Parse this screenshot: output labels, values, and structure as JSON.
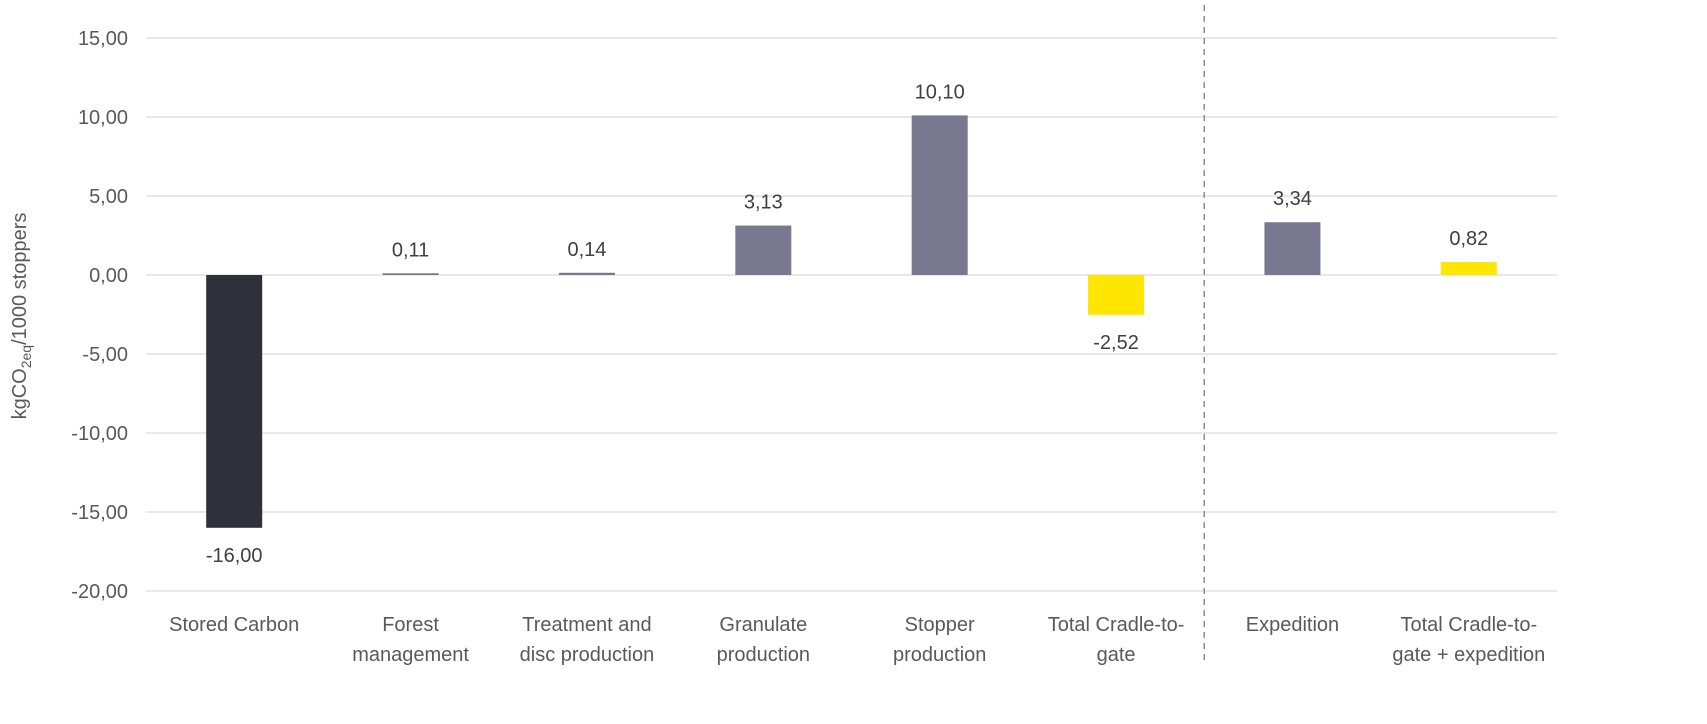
{
  "chart_data": {
    "type": "bar",
    "title": "",
    "xlabel": "",
    "ylabel": {
      "prefix": "kgCO",
      "subscript": "2eq",
      "suffix": "/1000 stoppers"
    },
    "ylim": [
      -20,
      15
    ],
    "yticks": [
      15,
      10,
      5,
      0,
      -5,
      -10,
      -15,
      -20
    ],
    "ytick_labels": [
      "15,00",
      "10,00",
      "5,00",
      "0,00",
      "-5,00",
      "-10,00",
      "-15,00",
      "-20,00"
    ],
    "grid": true,
    "legend": "none",
    "divider_after_category_index": 5,
    "categories": [
      {
        "lines": [
          "Stored Carbon"
        ]
      },
      {
        "lines": [
          "Forest",
          "management"
        ]
      },
      {
        "lines": [
          "Treatment and",
          "disc production"
        ]
      },
      {
        "lines": [
          "Granulate",
          "production"
        ]
      },
      {
        "lines": [
          "Stopper",
          "production"
        ]
      },
      {
        "lines": [
          "Total Cradle-to-",
          "gate"
        ]
      },
      {
        "lines": [
          "Expedition"
        ]
      },
      {
        "lines": [
          "Total Cradle-to-",
          "gate + expedition"
        ]
      }
    ],
    "values": [
      -16.0,
      0.11,
      0.14,
      3.13,
      10.1,
      -2.52,
      3.34,
      0.82
    ],
    "data_labels": [
      "-16,00",
      "0,11",
      "0,14",
      "3,13",
      "10,10",
      "-2,52",
      "3,34",
      "0,82"
    ],
    "bar_colors": [
      "#30303a",
      "#787890",
      "#787890",
      "#787890",
      "#787890",
      "#ffe600",
      "#787890",
      "#ffe600"
    ],
    "colors": {
      "gridline": "#d9d9d9",
      "divider": "#8a8aa0"
    }
  }
}
